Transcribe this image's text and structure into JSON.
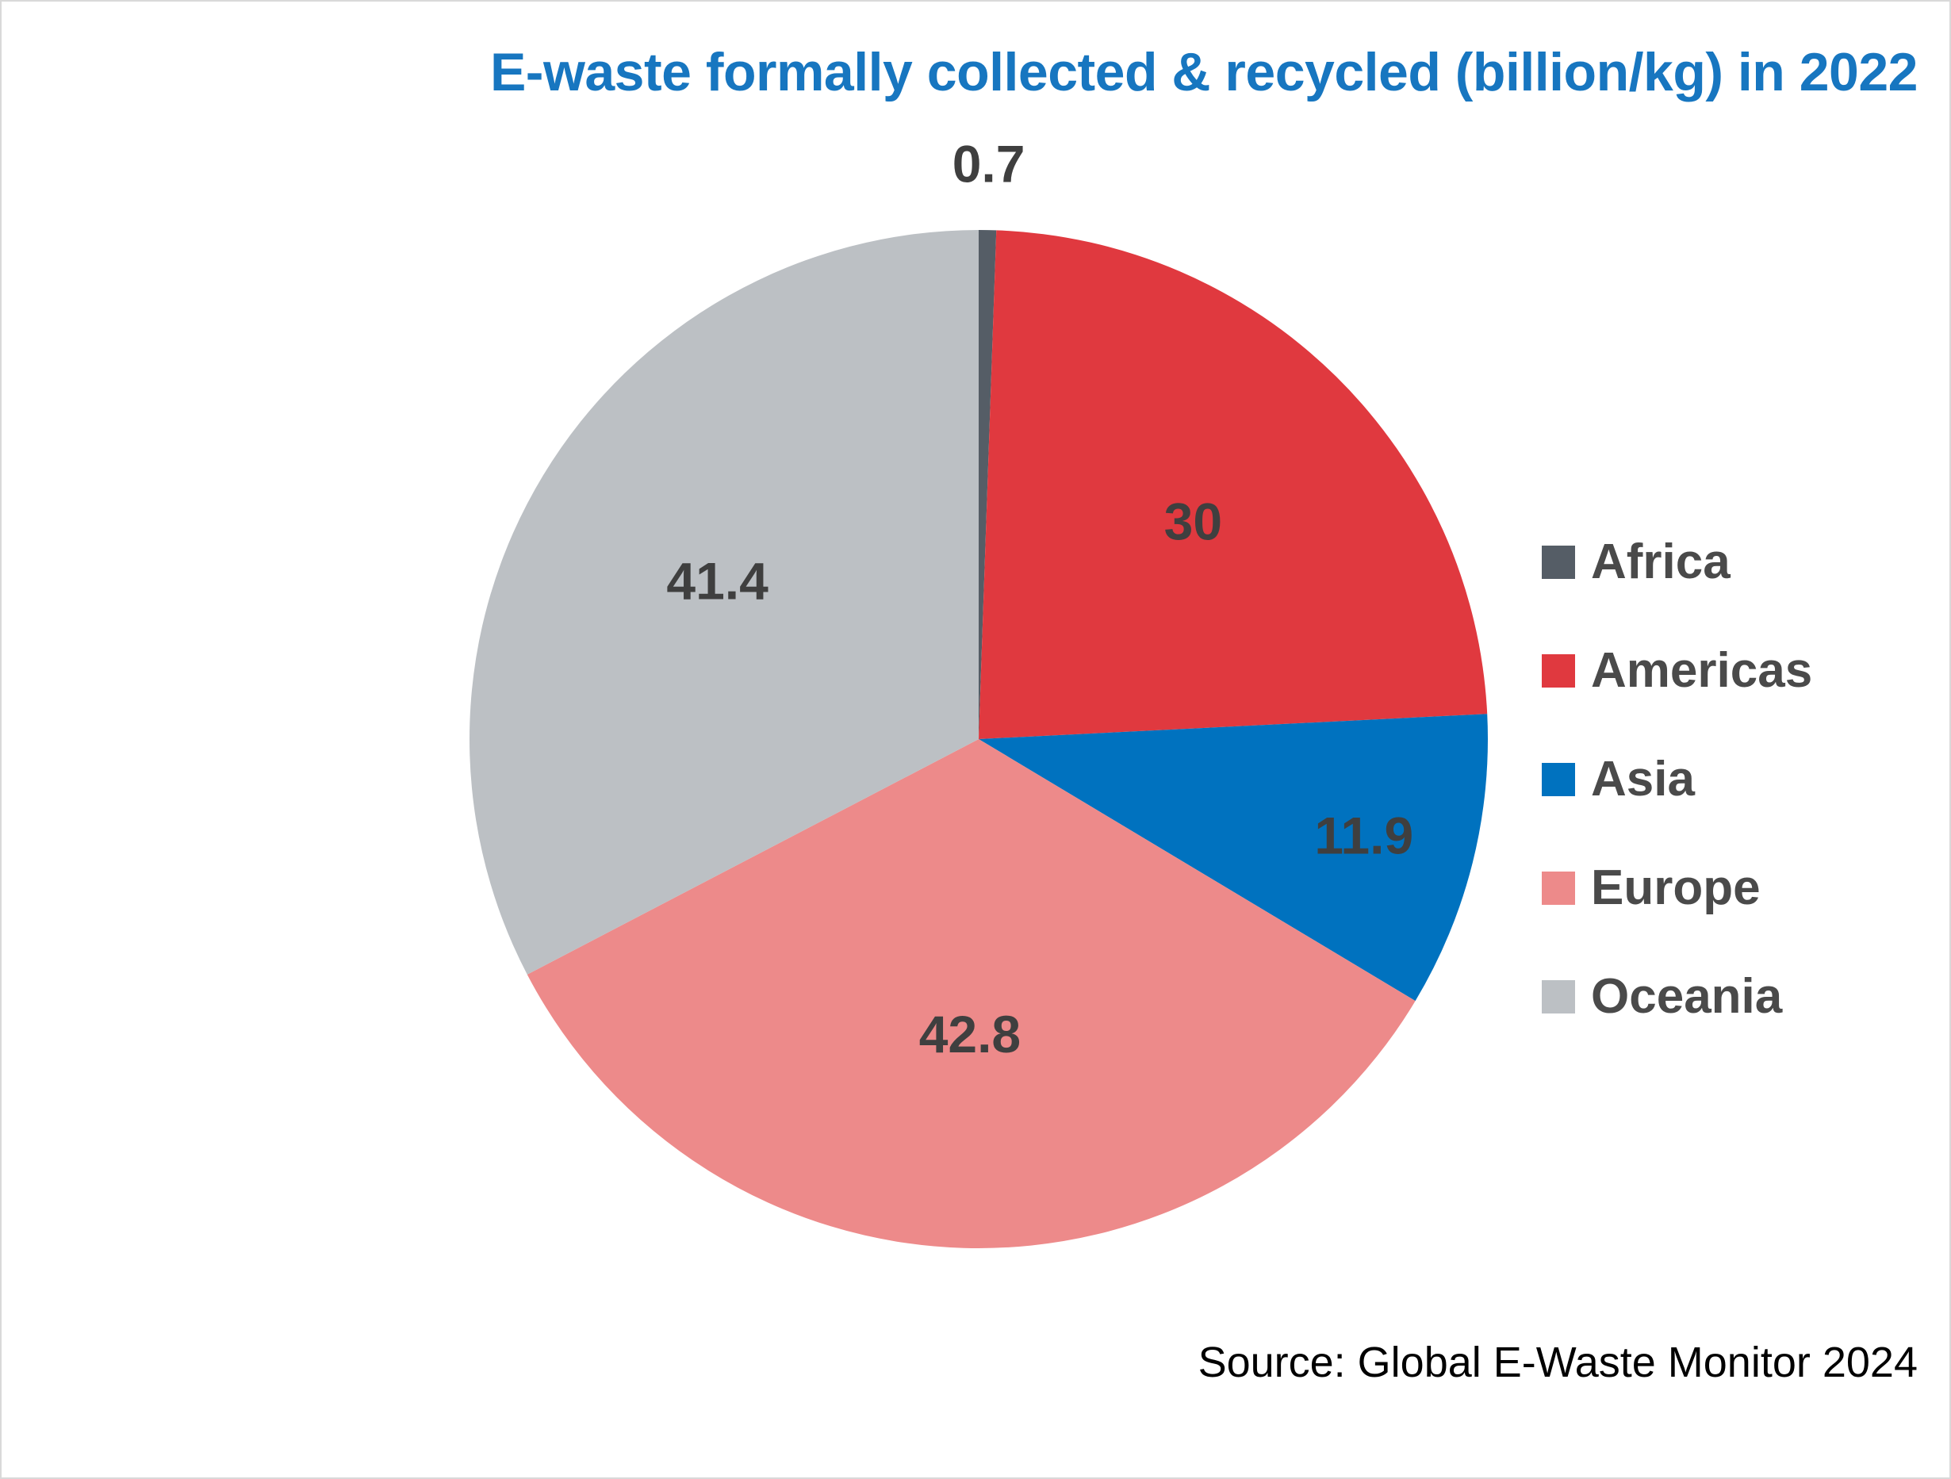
{
  "chart_data": {
    "type": "pie",
    "title": "E-waste formally collected & recycled (billion/kg) in 2022",
    "categories": [
      "Africa",
      "Americas",
      "Asia",
      "Europe",
      "Oceania"
    ],
    "values": [
      0.7,
      30,
      11.9,
      42.8,
      41.4
    ],
    "data_labels": [
      "0.7",
      "30",
      "11.9",
      "42.8",
      "41.4"
    ],
    "colors": [
      "#555d66",
      "#e0393f",
      "#0072bf",
      "#ed8a8a",
      "#bcc0c4"
    ],
    "title_color": "#1776c0",
    "legend_position": "right",
    "start_angle": "12 o'clock",
    "direction": "clockwise",
    "source": "Source: Global E-Waste Monitor 2024"
  }
}
